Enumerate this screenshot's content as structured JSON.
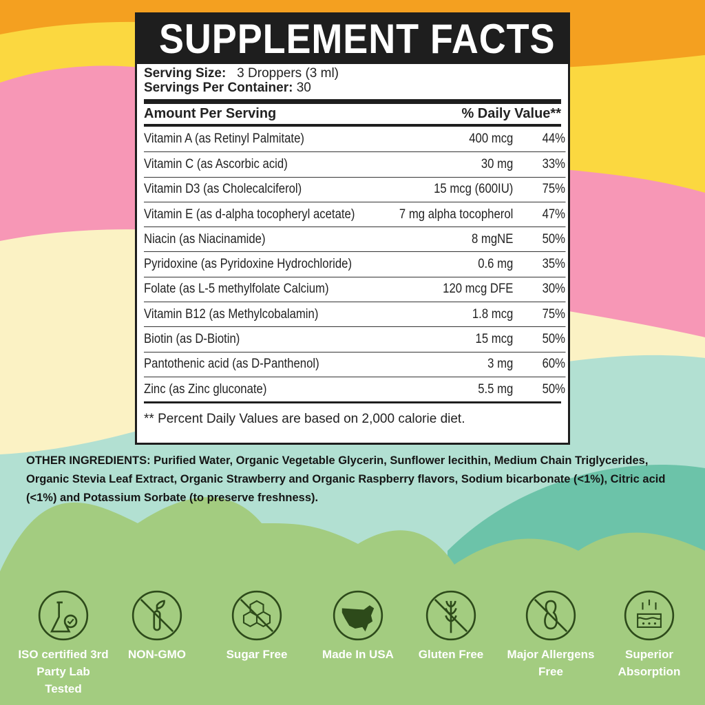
{
  "title": "SUPPLEMENT FACTS",
  "serving_size_label": "Serving Size:",
  "serving_size": "3 Droppers (3 ml)",
  "servings_label": "Servings Per Container:",
  "servings": "30",
  "amount_header": "Amount Per Serving",
  "dv_header": "% Daily Value**",
  "rows": [
    {
      "name": "Vitamin A (as Retinyl Palmitate)",
      "amount": "400 mcg",
      "dv": "44%"
    },
    {
      "name": "Vitamin C (as Ascorbic acid)",
      "amount": "30 mg",
      "dv": "33%"
    },
    {
      "name": "Vitamin D3 (as Cholecalciferol)",
      "amount": "15 mcg (600IU)",
      "dv": "75%"
    },
    {
      "name": "Vitamin E (as d-alpha tocopheryl acetate)",
      "amount": "7 mg alpha tocopherol",
      "dv": "47%"
    },
    {
      "name": "Niacin (as Niacinamide)",
      "amount": "8 mgNE",
      "dv": "50%"
    },
    {
      "name": "Pyridoxine (as Pyridoxine Hydrochloride)",
      "amount": "0.6 mg",
      "dv": "35%"
    },
    {
      "name": "Folate (as L-5 methylfolate Calcium)",
      "amount": "120 mcg DFE",
      "dv": "30%"
    },
    {
      "name": "Vitamin B12 (as Methylcobalamin)",
      "amount": "1.8 mcg",
      "dv": "75%"
    },
    {
      "name": "Biotin (as D-Biotin)",
      "amount": "15 mcg",
      "dv": "50%"
    },
    {
      "name": "Pantothenic acid (as D-Panthenol)",
      "amount": "3 mg",
      "dv": "60%"
    },
    {
      "name": "Zinc (as Zinc gluconate)",
      "amount": "5.5 mg",
      "dv": "50%"
    }
  ],
  "footnote": "** Percent Daily Values are based on 2,000 calorie diet.",
  "other_ingredients": "OTHER INGREDIENTS: Purified Water, Organic Vegetable Glycerin, Sunflower lecithin, Medium Chain Triglycerides, Organic Stevia Leaf Extract, Organic Strawberry and Organic Raspberry flavors, Sodium bicarbonate (<1%), Citric acid (<1%) and Potassium Sorbate (to preserve freshness).",
  "badges": [
    {
      "icon": "lab-flask-icon",
      "label": "ISO certified 3rd Party Lab Tested"
    },
    {
      "icon": "non-gmo-icon",
      "label": "NON-GMO"
    },
    {
      "icon": "sugar-free-icon",
      "label": "Sugar Free"
    },
    {
      "icon": "usa-map-icon",
      "label": "Made In USA"
    },
    {
      "icon": "gluten-free-icon",
      "label": "Gluten Free"
    },
    {
      "icon": "allergen-free-icon",
      "label": "Major Allergens Free"
    },
    {
      "icon": "absorption-icon",
      "label": "Superior Absorption"
    }
  ],
  "colors": {
    "orange": "#f4a020",
    "yellow": "#fbd840",
    "pink": "#f797b6",
    "cream": "#fbf2c4",
    "mint": "#b2e0d2",
    "green": "#a3cc80",
    "icon": "#2d4a1a"
  }
}
